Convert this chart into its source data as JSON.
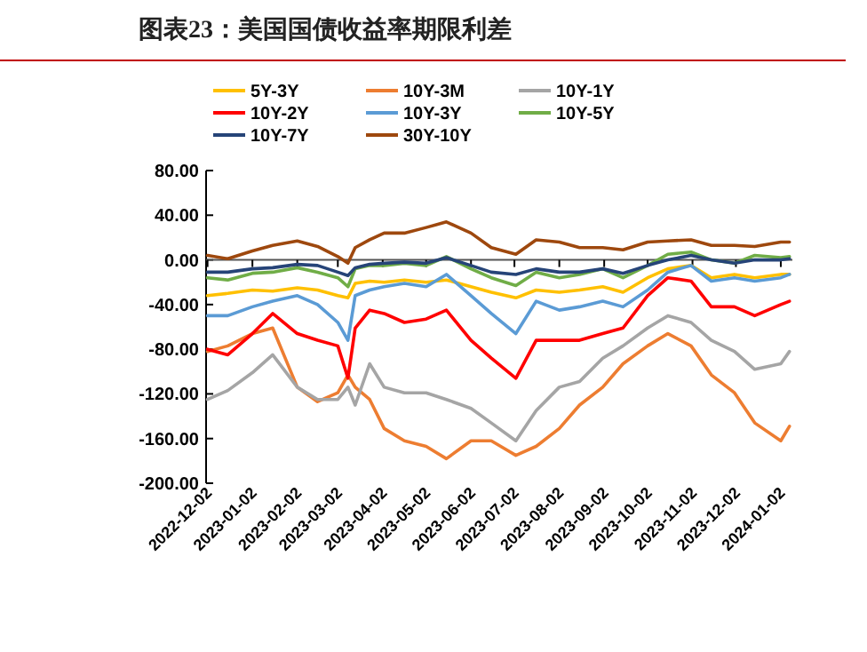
{
  "chart_data": {
    "type": "line",
    "title": "图表23：美国国债收益率期限利差",
    "x": [
      "2022-12-02",
      "2022-12-16",
      "2023-01-02",
      "2023-01-16",
      "2023-02-02",
      "2023-02-16",
      "2023-03-02",
      "2023-03-09",
      "2023-03-14",
      "2023-03-24",
      "2023-04-03",
      "2023-04-17",
      "2023-05-02",
      "2023-05-16",
      "2023-06-02",
      "2023-06-16",
      "2023-07-03",
      "2023-07-17",
      "2023-08-02",
      "2023-08-16",
      "2023-09-01",
      "2023-09-15",
      "2023-10-02",
      "2023-10-16",
      "2023-11-01",
      "2023-11-15",
      "2023-12-01",
      "2023-12-15",
      "2024-01-02",
      "2024-01-08"
    ],
    "series": [
      {
        "name": "5Y-3Y",
        "color": "#ffc000",
        "values": [
          -32,
          -30,
          -27,
          -28,
          -25,
          -27,
          -32,
          -34,
          -21,
          -19,
          -20,
          -18,
          -20,
          -18,
          -24,
          -29,
          -34,
          -27,
          -29,
          -27,
          -24,
          -29,
          -16,
          -8,
          -5,
          -16,
          -13,
          -16,
          -13,
          -13
        ]
      },
      {
        "name": "10Y-3M",
        "color": "#ed7d31",
        "values": [
          -82,
          -77,
          -66,
          -61,
          -114,
          -127,
          -119,
          -103,
          -114,
          -125,
          -151,
          -162,
          -167,
          -178,
          -162,
          -162,
          -175,
          -167,
          -151,
          -130,
          -114,
          -93,
          -77,
          -66,
          -77,
          -103,
          -119,
          -146,
          -162,
          -149
        ]
      },
      {
        "name": "10Y-1Y",
        "color": "#a5a5a5",
        "values": [
          -125,
          -117,
          -101,
          -85,
          -114,
          -125,
          -125,
          -114,
          -130,
          -93,
          -114,
          -119,
          -119,
          -125,
          -133,
          -146,
          -162,
          -135,
          -114,
          -109,
          -88,
          -77,
          -61,
          -50,
          -56,
          -72,
          -82,
          -98,
          -93,
          -82
        ]
      },
      {
        "name": "10Y-2Y",
        "color": "#ff0000",
        "values": [
          -80,
          -85,
          -66,
          -48,
          -66,
          -72,
          -77,
          -106,
          -61,
          -45,
          -48,
          -56,
          -53,
          -45,
          -72,
          -88,
          -106,
          -72,
          -72,
          -72,
          -66,
          -61,
          -32,
          -16,
          -19,
          -42,
          -42,
          -50,
          -40,
          -37
        ]
      },
      {
        "name": "10Y-3Y",
        "color": "#5b9bd5",
        "values": [
          -50,
          -50,
          -42,
          -37,
          -32,
          -40,
          -56,
          -72,
          -32,
          -27,
          -24,
          -21,
          -24,
          -13,
          -32,
          -48,
          -66,
          -37,
          -45,
          -42,
          -37,
          -42,
          -27,
          -11,
          -5,
          -19,
          -16,
          -19,
          -16,
          -13
        ]
      },
      {
        "name": "10Y-5Y",
        "color": "#70ad47",
        "values": [
          -16,
          -18,
          -12,
          -11,
          -7,
          -11,
          -16,
          -24,
          -8,
          -5,
          -5,
          -3,
          -5,
          3,
          -8,
          -16,
          -23,
          -11,
          -16,
          -13,
          -8,
          -16,
          -5,
          5,
          7,
          0,
          -3,
          4,
          2,
          3
        ]
      },
      {
        "name": "10Y-7Y",
        "color": "#264478",
        "values": [
          -11,
          -11,
          -8,
          -7,
          -4,
          -5,
          -11,
          -14,
          -7,
          -4,
          -3,
          -2,
          -3,
          2,
          -5,
          -11,
          -13,
          -8,
          -11,
          -11,
          -8,
          -12,
          -5,
          0,
          4,
          0,
          -3,
          0,
          0,
          1
        ]
      },
      {
        "name": "30Y-10Y",
        "color": "#9e480e",
        "values": [
          4,
          1,
          8,
          13,
          17,
          12,
          3,
          -3,
          11,
          18,
          24,
          24,
          29,
          34,
          24,
          11,
          5,
          18,
          16,
          11,
          11,
          9,
          16,
          17,
          18,
          13,
          13,
          12,
          16,
          16
        ]
      }
    ],
    "xlim": [
      "2022-12-01",
      "2024-01-10"
    ],
    "xticks": [
      "2022-12-02",
      "2023-01-02",
      "2023-02-02",
      "2023-03-02",
      "2023-04-02",
      "2023-05-02",
      "2023-06-02",
      "2023-07-02",
      "2023-08-02",
      "2023-09-02",
      "2023-10-02",
      "2023-11-02",
      "2023-12-02",
      "2024-01-02"
    ],
    "ylim": [
      -200,
      80
    ],
    "yticks": [
      {
        "value": 80,
        "label": "80.00"
      },
      {
        "value": 40,
        "label": "40.00"
      },
      {
        "value": 0,
        "label": "0.00"
      },
      {
        "value": -40,
        "label": "-40.00"
      },
      {
        "value": -80,
        "label": "-80.00"
      },
      {
        "value": -120,
        "label": "-120.00"
      },
      {
        "value": -160,
        "label": "-160.00"
      },
      {
        "value": -200,
        "label": "-200.00"
      }
    ],
    "legend": "top",
    "marker": "none",
    "line_style": "solid"
  }
}
